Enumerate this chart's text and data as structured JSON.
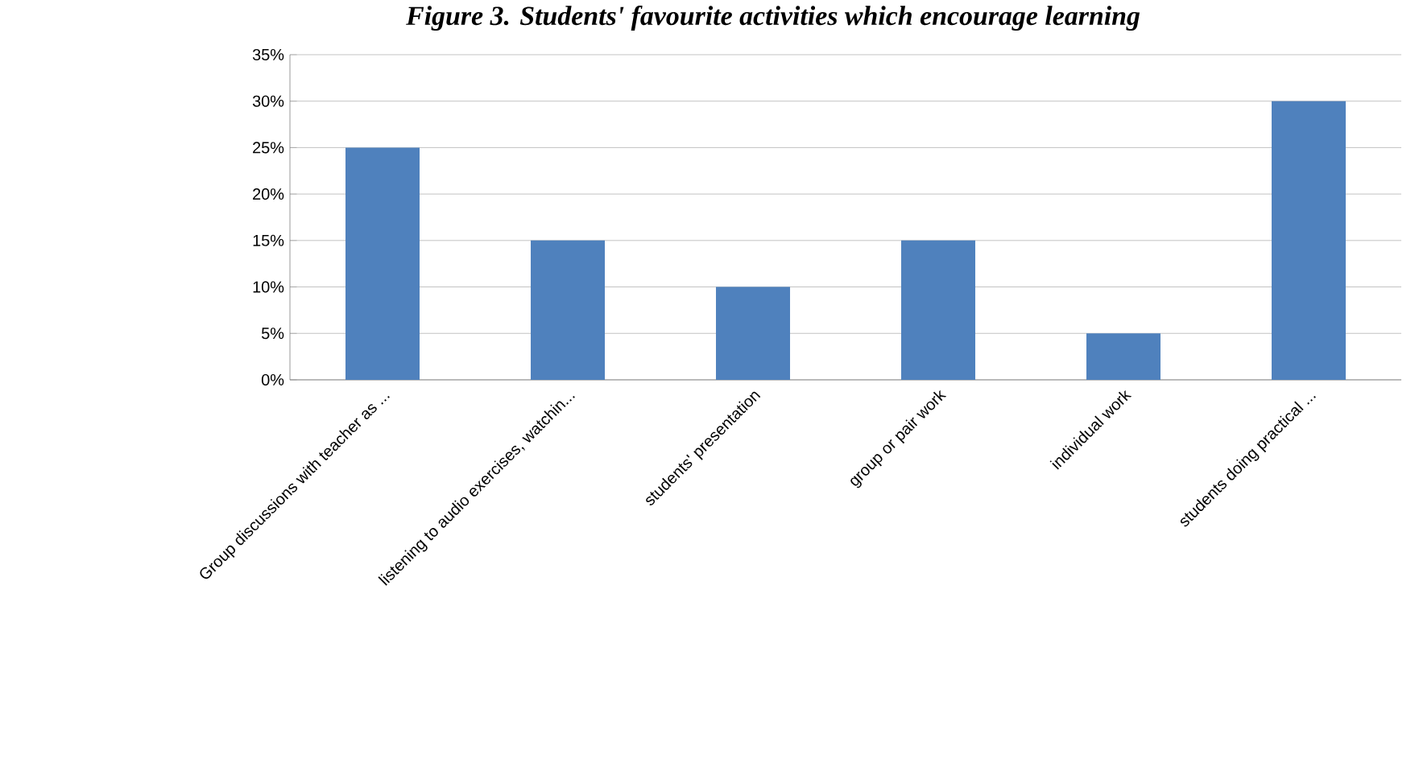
{
  "chart_data": {
    "type": "bar",
    "title": "Figure 3. Students' favourite activities which encourage learning",
    "categories": [
      "Group discussions with teacher as ...",
      "listening to audio exercises, watchin...",
      "students' presentation",
      "group or pair work",
      "individual work",
      "students doing practical ..."
    ],
    "values": [
      25,
      15,
      10,
      15,
      5,
      30
    ],
    "color": "#4f81bd",
    "ylim": [
      0,
      35
    ],
    "yticks": [
      {
        "value": 0,
        "label": "0%"
      },
      {
        "value": 5,
        "label": "5%"
      },
      {
        "value": 10,
        "label": "10%"
      },
      {
        "value": 15,
        "label": "15%"
      },
      {
        "value": 20,
        "label": "20%"
      },
      {
        "value": 25,
        "label": "25%"
      },
      {
        "value": 30,
        "label": "30%"
      },
      {
        "value": 35,
        "label": "35%"
      }
    ],
    "grid": "y"
  }
}
